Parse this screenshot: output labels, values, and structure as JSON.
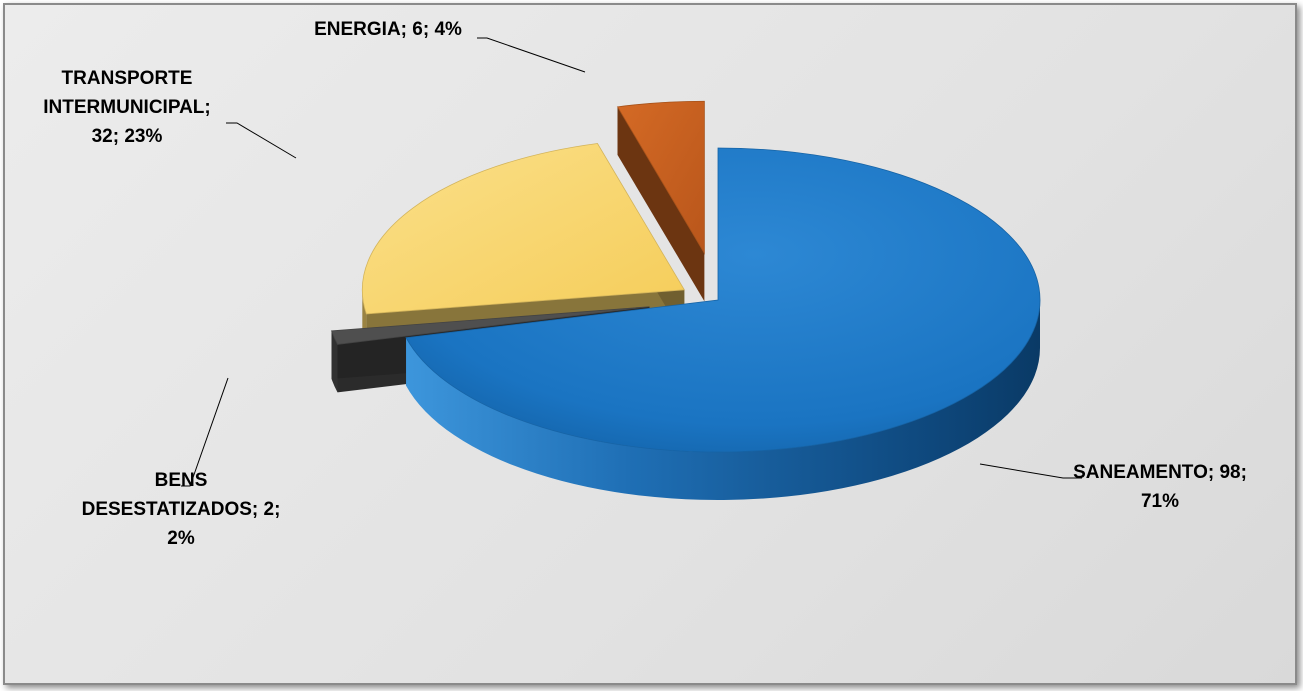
{
  "chart_data": {
    "type": "pie",
    "style": "3d-exploded",
    "slices": [
      {
        "name": "SANEAMENTO",
        "value": 98,
        "percent": 71,
        "color": "#1a74c2",
        "label_lines": [
          "SANEAMENTO; 98;",
          "71%"
        ]
      },
      {
        "name": "BENS DESESTATIZADOS",
        "value": 2,
        "percent": 2,
        "color": "#4f4f4f",
        "label_lines": [
          "BENS",
          "DESESTATIZADOS; 2;",
          "2%"
        ]
      },
      {
        "name": "TRANSPORTE INTERMUNICIPAL",
        "value": 32,
        "percent": 23,
        "color": "#f8d46b",
        "label_lines": [
          "TRANSPORTE",
          "INTERMUNICIPAL;",
          "32; 23%"
        ]
      },
      {
        "name": "ENERGIA",
        "value": 6,
        "percent": 4,
        "color": "#c5601f",
        "label_lines": [
          "ENERGIA; 6; 4%"
        ]
      }
    ]
  }
}
